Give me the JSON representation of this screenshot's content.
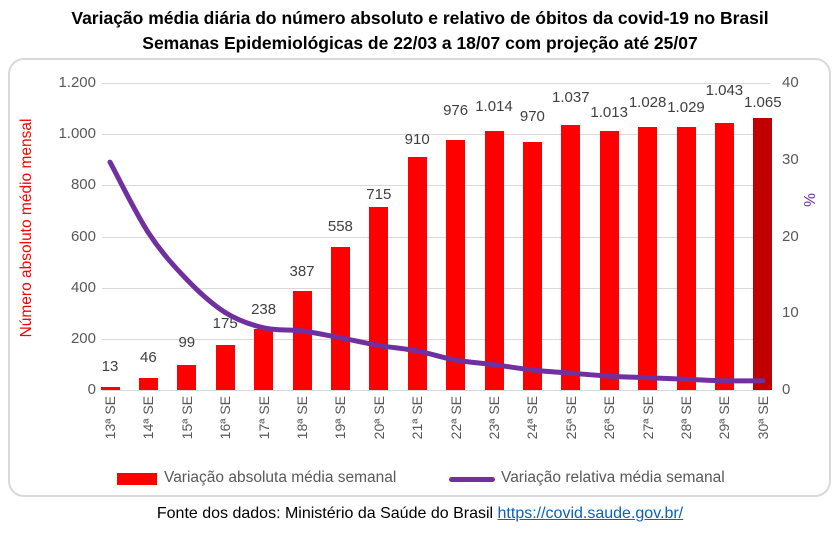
{
  "page": {
    "title_line1": "Variação média diária do número absoluto e relativo de óbitos da covid-19 no Brasil",
    "title_line2": "Semanas Epidemiológicas de 22/03 a 18/07 com projeção até 25/07",
    "footer_prefix": "Fonte dos dados: Ministério da Saúde do Brasil",
    "footer_link": "https://covid.saude.gov.br/"
  },
  "chart_data": {
    "type": "bar",
    "categories": [
      "13ª SE",
      "14ª SE",
      "15ª SE",
      "16ª SE",
      "17ª SE",
      "18ª SE",
      "19ª SE",
      "20ª SE",
      "21ª SE",
      "22ª SE",
      "23ª SE",
      "24ª SE",
      "25ª SE",
      "26ª SE",
      "27ª SE",
      "28ª SE",
      "29ª SE",
      "30ª SE"
    ],
    "series": [
      {
        "name": "Variação absoluta média semanal",
        "type": "column",
        "axis": "left",
        "color": "#FF0000",
        "projection_color": "#C00000",
        "projection_index": 17,
        "values": [
          13,
          46,
          99,
          175,
          238,
          387,
          558,
          715,
          910,
          976,
          1014,
          970,
          1037,
          1013,
          1028,
          1029,
          1043,
          1065
        ],
        "labels": [
          "13",
          "46",
          "99",
          "175",
          "238",
          "387",
          "558",
          "715",
          "910",
          "976",
          "1.014",
          "970",
          "1.037",
          "1.013",
          "1.028",
          "1.029",
          "1.043",
          "1.065"
        ]
      },
      {
        "name": "Variação relativa média semanal",
        "type": "line",
        "axis": "right",
        "color": "#7030A0",
        "smooth": true,
        "values": [
          29.7,
          20.5,
          14.4,
          10.1,
          8.1,
          7.7,
          6.8,
          5.8,
          5.1,
          3.9,
          3.3,
          2.6,
          2.2,
          1.8,
          1.6,
          1.4,
          1.2,
          1.2
        ]
      }
    ],
    "left_axis": {
      "title": "Número absoluto médio mensal",
      "color": "#FF0000",
      "min": 0,
      "max": 1200,
      "tick_step": 200,
      "tick_labels": [
        "1.200",
        "1.000",
        "800",
        "600",
        "400",
        "200",
        "0"
      ]
    },
    "right_axis": {
      "title": "%",
      "color": "#7030A0",
      "min": 0,
      "max": 40,
      "tick_step": 10,
      "tick_labels": [
        "40",
        "30",
        "20",
        "10",
        "0"
      ]
    },
    "grid": true,
    "legend_position": "bottom",
    "tick_color": "#595959",
    "data_label_color": "#404040",
    "grid_color": "#d9d9d9",
    "label_gaps": [
      13,
      13,
      15,
      14,
      12,
      12,
      13,
      5,
      10,
      22,
      17,
      18,
      20,
      11,
      17,
      12,
      25,
      8
    ]
  }
}
